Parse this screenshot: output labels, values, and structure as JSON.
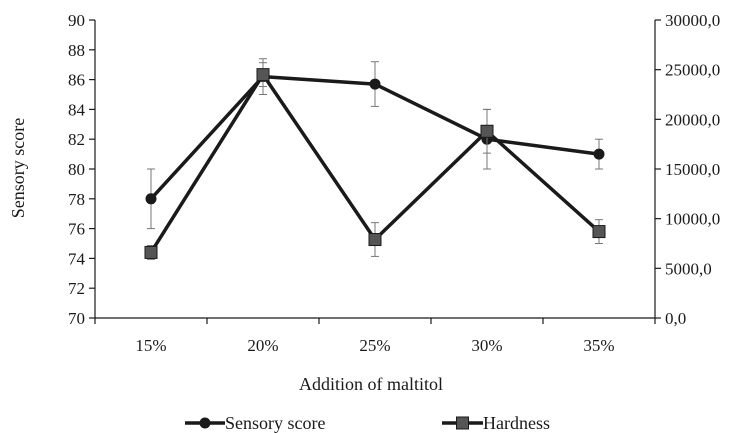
{
  "chart_data": {
    "type": "line",
    "categories": [
      "15%",
      "20%",
      "25%",
      "30%",
      "35%"
    ],
    "xlabel": "Addition of maltitol",
    "ylabel": "Sensory  score",
    "ylabel_right": "",
    "ylim": [
      70,
      90
    ],
    "ylim_right": [
      0,
      30000
    ],
    "y_ticks": [
      "70",
      "72",
      "74",
      "76",
      "78",
      "80",
      "82",
      "84",
      "86",
      "88",
      "90"
    ],
    "y_right_ticks": [
      "0,0",
      "5000,0",
      "10000,0",
      "15000,0",
      "20000,0",
      "25000,0",
      "30000,0"
    ],
    "grid": false,
    "legend_position": "bottom",
    "series": [
      {
        "name": "Sensory score",
        "axis": "left",
        "marker": "circle",
        "color": "#1a1a1a",
        "values": [
          78.0,
          86.2,
          85.7,
          82.0,
          81.0
        ],
        "errors": [
          2.0,
          1.2,
          1.5,
          2.0,
          1.0
        ]
      },
      {
        "name": "Hardness",
        "axis": "right",
        "marker": "square",
        "color": "#1a1a1a",
        "values": [
          6600,
          24500,
          7900,
          18800,
          8700
        ],
        "errors": [
          700,
          1200,
          1700,
          2200,
          1200
        ]
      }
    ]
  }
}
